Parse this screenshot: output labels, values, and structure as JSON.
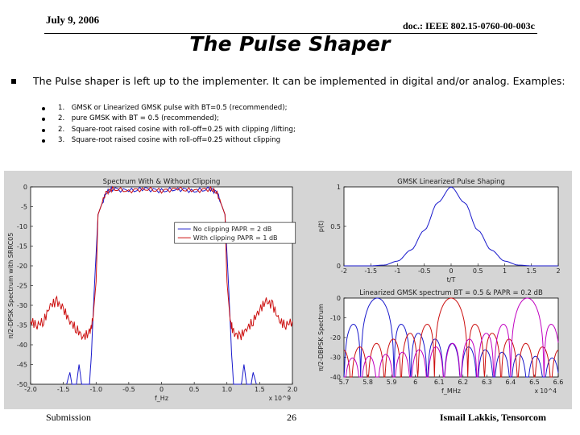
{
  "header": {
    "date": "July 9, 2006",
    "doc": "doc.: IEEE 802.15-0760-00-003c"
  },
  "title": "The Pulse Shaper",
  "intro": "The Pulse shaper is left up to the implementer. It can be implemented in digital and/or analog. Examples:",
  "examples": [
    {
      "num": "1.",
      "text": "GMSK or Linearized GMSK pulse with BT=0.5 (recommended);"
    },
    {
      "num": "2.",
      "text": "pure GMSK with BT = 0.5 (recommended);"
    },
    {
      "num": "2.",
      "text": "Square-root raised cosine with roll-off=0.25 with clipping /lifting;"
    },
    {
      "num": "3.",
      "text": "Square-root raised cosine with roll-off=0.25 without clipping"
    }
  ],
  "footer": {
    "left": "Submission",
    "page": "26",
    "right": "Ismail Lakkis, Tensorcom"
  },
  "colors": {
    "blue": "#1a1acc",
    "red": "#cc1010",
    "magenta": "#c000c0"
  },
  "chart_data": [
    {
      "type": "line",
      "title": "Spectrum With & Without Clipping",
      "xlabel": "f_Hz",
      "x_multiplier": "x 10^9",
      "ylabel": "π/2-DPSK Spectrum with SRRC05",
      "xlim": [
        -2.0,
        2.0
      ],
      "ylim": [
        -50,
        0
      ],
      "xticks": [
        "-2.0",
        "-1.5",
        "-1.0",
        "-0.5",
        "0",
        "0.5",
        "1.0",
        "1.5",
        "2.0"
      ],
      "yticks": [
        "0",
        "-5",
        "-10",
        "-15",
        "-20",
        "-25",
        "-30",
        "-35",
        "-40",
        "-45",
        "-50"
      ],
      "legend_position": "center-right",
      "series": [
        {
          "name": "No clipping PAPR = 2 dB",
          "color": "blue",
          "points": [
            [
              -1.45,
              -50
            ],
            [
              -1.4,
              -47
            ],
            [
              -1.37,
              -50
            ],
            [
              -1.3,
              -50
            ],
            [
              -1.26,
              -45
            ],
            [
              -1.22,
              -50
            ],
            [
              -1.1,
              -50
            ],
            [
              -1.07,
              -42
            ],
            [
              -1.03,
              -27
            ],
            [
              -0.97,
              -7
            ],
            [
              -0.85,
              -1.5
            ],
            [
              -0.75,
              -0.5
            ],
            [
              -0.5,
              -1
            ],
            [
              -0.25,
              -0.5
            ],
            [
              0,
              -1
            ],
            [
              0.25,
              -0.5
            ],
            [
              0.5,
              -1
            ],
            [
              0.75,
              -0.5
            ],
            [
              0.85,
              -1.5
            ],
            [
              0.97,
              -7
            ],
            [
              1.03,
              -27
            ],
            [
              1.07,
              -42
            ],
            [
              1.1,
              -50
            ],
            [
              1.22,
              -50
            ],
            [
              1.26,
              -45
            ],
            [
              1.3,
              -50
            ],
            [
              1.37,
              -50
            ],
            [
              1.4,
              -47
            ],
            [
              1.45,
              -50
            ]
          ]
        },
        {
          "name": "With clipping PAPR = 1 dB",
          "color": "red",
          "points": [
            [
              -2.0,
              -34
            ],
            [
              -1.9,
              -35
            ],
            [
              -1.8,
              -34
            ],
            [
              -1.7,
              -30
            ],
            [
              -1.6,
              -29
            ],
            [
              -1.5,
              -31
            ],
            [
              -1.4,
              -34
            ],
            [
              -1.3,
              -36
            ],
            [
              -1.2,
              -38
            ],
            [
              -1.1,
              -37
            ],
            [
              -1.05,
              -34
            ],
            [
              -1.0,
              -24
            ],
            [
              -0.97,
              -7
            ],
            [
              -0.85,
              -1.5
            ],
            [
              -0.75,
              -0.5
            ],
            [
              -0.5,
              -1
            ],
            [
              -0.25,
              -0.5
            ],
            [
              0,
              -1
            ],
            [
              0.25,
              -0.5
            ],
            [
              0.5,
              -1
            ],
            [
              0.75,
              -0.5
            ],
            [
              0.85,
              -1.5
            ],
            [
              0.97,
              -7
            ],
            [
              1.0,
              -24
            ],
            [
              1.05,
              -34
            ],
            [
              1.1,
              -37
            ],
            [
              1.2,
              -38
            ],
            [
              1.3,
              -36
            ],
            [
              1.4,
              -34
            ],
            [
              1.5,
              -31
            ],
            [
              1.6,
              -29
            ],
            [
              1.7,
              -30
            ],
            [
              1.8,
              -34
            ],
            [
              1.9,
              -35
            ],
            [
              2.0,
              -34
            ]
          ]
        }
      ]
    },
    {
      "type": "line",
      "title": "GMSK Linearized Pulse Shaping",
      "xlabel": "t/T",
      "ylabel": "p(t)",
      "xlim": [
        -2,
        2
      ],
      "ylim": [
        0,
        1
      ],
      "xticks": [
        "-2",
        "-1.5",
        "-1",
        "-0.5",
        "0",
        "0.5",
        "1",
        "1.5",
        "2"
      ],
      "yticks": [
        "1",
        "0.5",
        "0"
      ],
      "series": [
        {
          "name": "",
          "color": "blue",
          "points": [
            [
              -2,
              0
            ],
            [
              -1.5,
              0
            ],
            [
              -1.25,
              0.01
            ],
            [
              -1,
              0.06
            ],
            [
              -0.75,
              0.2
            ],
            [
              -0.5,
              0.45
            ],
            [
              -0.25,
              0.8
            ],
            [
              0,
              1
            ],
            [
              0.25,
              0.8
            ],
            [
              0.5,
              0.45
            ],
            [
              0.75,
              0.2
            ],
            [
              1,
              0.06
            ],
            [
              1.25,
              0.01
            ],
            [
              1.5,
              0
            ],
            [
              2,
              0
            ]
          ]
        }
      ]
    },
    {
      "type": "line",
      "title": "Linearized GMSK spectrum BT = 0.5 & PAPR = 0.2 dB",
      "xlabel": "f_MHz",
      "x_multiplier": "x 10^4",
      "ylabel": "π/2-DBPSK Spectrum",
      "xlim": [
        5.7,
        6.6
      ],
      "ylim": [
        -40,
        0
      ],
      "xticks": [
        "5.7",
        "5.8",
        "5.9",
        "6",
        "6.1",
        "6.2",
        "6.3",
        "6.4",
        "6.5",
        "6.6"
      ],
      "yticks": [
        "0",
        "-10",
        "-20",
        "-30",
        "-40"
      ],
      "series": [
        {
          "name": "",
          "color": "blue",
          "center": 5.84,
          "null_spacing": 0.07
        },
        {
          "name": "",
          "color": "red",
          "center": 6.15,
          "null_spacing": 0.07
        },
        {
          "name": "",
          "color": "magenta",
          "center": 6.47,
          "null_spacing": 0.07
        }
      ]
    }
  ]
}
